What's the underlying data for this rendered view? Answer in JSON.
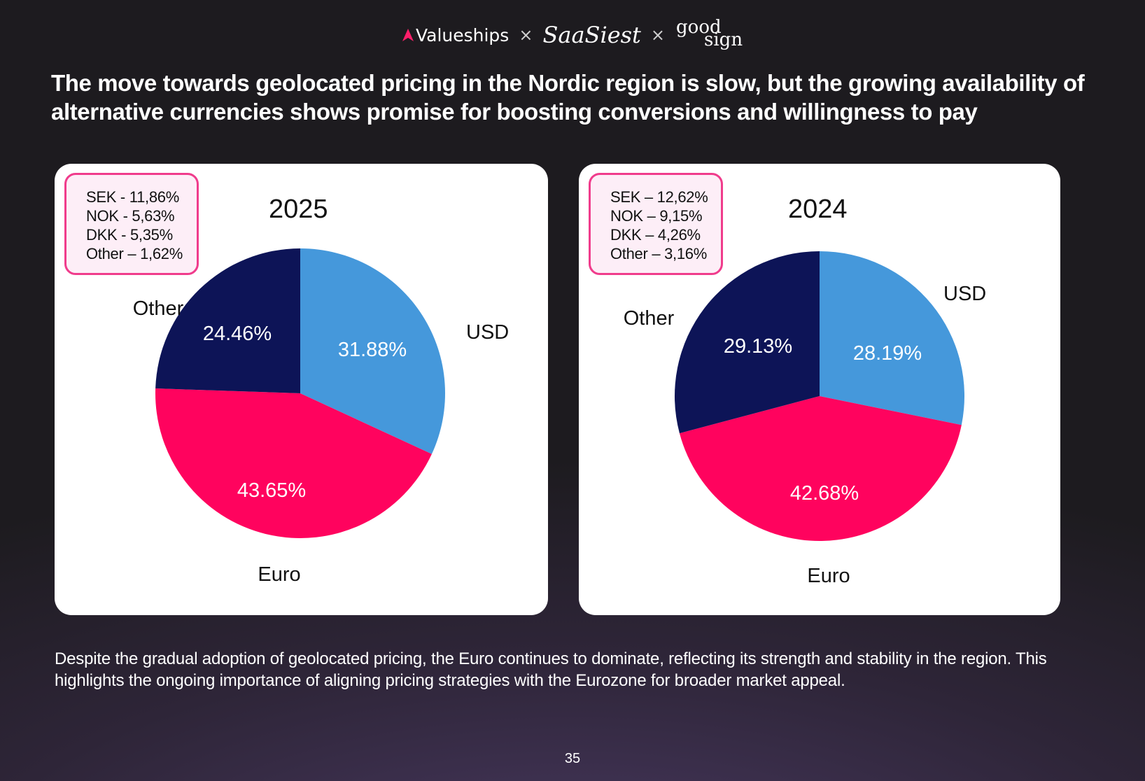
{
  "header": {
    "logos": {
      "valueships": "Valueships",
      "separator": "×",
      "saasiest": "SaaSiest",
      "goodsign_top": "good",
      "goodsign_bottom": "sign"
    },
    "headline": "The move towards geolocated pricing in the Nordic region is slow, but the growing availability of alternative currencies shows promise for boosting conversions and willingness to pay"
  },
  "chart_data": [
    {
      "type": "pie",
      "title": "2025",
      "categories": [
        "USD",
        "Euro",
        "Other"
      ],
      "values": [
        31.88,
        43.65,
        24.46
      ],
      "value_labels": [
        "31.88%",
        "43.65%",
        "24.46%"
      ],
      "colors": [
        "#4598db",
        "#ff035e",
        "#0d1457"
      ],
      "breakdown": [
        "SEK - 11,86%",
        "NOK - 5,63%",
        "DKK - 5,35%",
        "Other – 1,62%"
      ]
    },
    {
      "type": "pie",
      "title": "2024",
      "categories": [
        "USD",
        "Euro",
        "Other"
      ],
      "values": [
        28.19,
        42.68,
        29.13
      ],
      "value_labels": [
        "28.19%",
        "42.68%",
        "29.13%"
      ],
      "colors": [
        "#4598db",
        "#ff035e",
        "#0d1457"
      ],
      "breakdown": [
        "SEK – 12,62%",
        "NOK – 9,15%",
        "DKK – 4,26%",
        "Other – 3,16%"
      ]
    }
  ],
  "footer": {
    "note": "Despite the gradual adoption of geolocated pricing, the Euro continues to dominate, reflecting its strength and stability in the region. This highlights the ongoing importance of aligning pricing strategies with the Eurozone for broader market appeal.",
    "page_number": "35"
  },
  "colors": {
    "accent": "#ff035e",
    "background": "#1d1b1f",
    "card": "#ffffff"
  }
}
